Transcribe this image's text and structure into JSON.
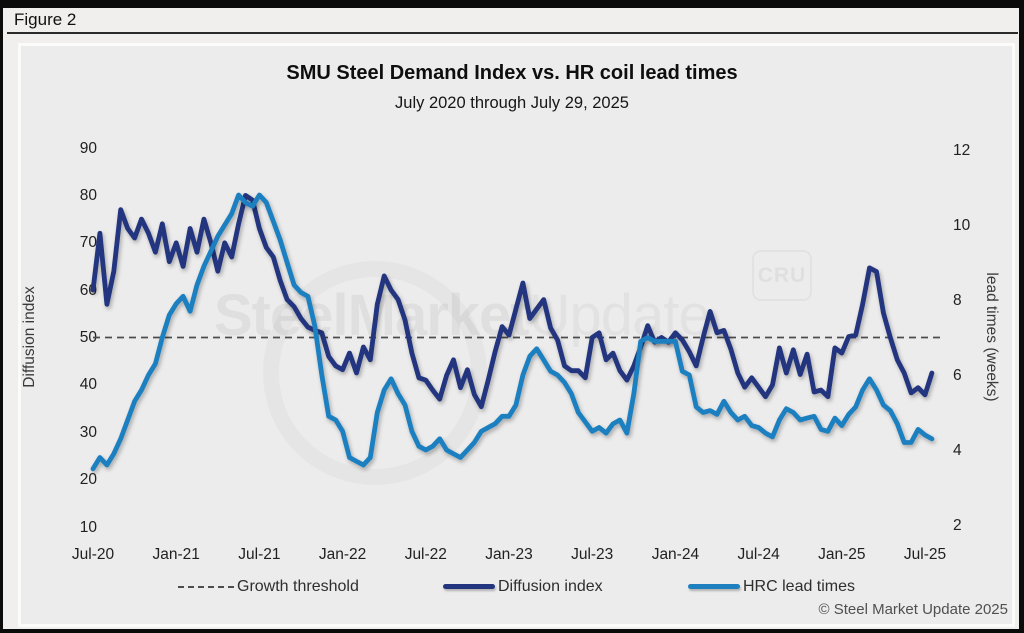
{
  "figure_label": "Figure 2",
  "footer_credit": "© Steel Market Update 2025",
  "watermark": {
    "word1": "SteelMarket",
    "word2": "Update",
    "badge": "CRU"
  },
  "colors": {
    "diffusion_line": "#22357e",
    "lead_time_line": "#1f80c0",
    "threshold_line": "#4d4d4d",
    "panel_bg": "#edecec",
    "page_bg": "#f0efee"
  },
  "chart_data": {
    "type": "line",
    "title": "SMU Steel Demand Index vs. HR coil lead times",
    "subtitle": "July 2020 through July 29, 2025",
    "x_axis": {
      "tick_labels": [
        "Jul-20",
        "Jan-21",
        "Jul-21",
        "Jan-22",
        "Jul-22",
        "Jan-23",
        "Jul-23",
        "Jan-24",
        "Jul-24",
        "Jan-25",
        "Jul-25"
      ],
      "start": "Jul-2020",
      "end": "Jul-2025",
      "points_step_months": 0.5
    },
    "y_left": {
      "label": "Diffusion index",
      "ticks": [
        90,
        80,
        70,
        60,
        50,
        40,
        30,
        20,
        10
      ],
      "range": [
        10,
        90
      ]
    },
    "y_right": {
      "label": "lead times (weeks)",
      "ticks": [
        12,
        10,
        8,
        6,
        4,
        2
      ],
      "range": [
        2,
        12
      ]
    },
    "threshold": {
      "label": "Growth threshold",
      "value": 50,
      "axis": "left",
      "style": "dashed",
      "color": "#4d4d4d"
    },
    "legend_position": "bottom",
    "grid": false,
    "series": [
      {
        "name": "Diffusion index",
        "axis": "left",
        "color": "#22357e",
        "values": [
          60,
          72,
          57,
          64,
          77,
          73,
          71,
          75,
          72,
          68,
          74,
          66,
          70,
          65,
          73,
          68,
          75,
          70,
          64,
          70,
          67,
          74,
          80,
          79,
          73,
          69,
          67,
          62,
          58,
          56.5,
          54,
          52.2,
          51.5,
          51,
          46,
          44,
          43.2,
          46.7,
          42.5,
          48,
          45.3,
          57,
          63,
          60,
          58,
          53.7,
          46.7,
          41.5,
          41,
          38.9,
          37,
          42,
          45.3,
          39.4,
          43.2,
          38,
          35.4,
          41,
          47,
          52.3,
          50.5,
          56,
          61.5,
          54,
          56,
          58,
          52,
          49.5,
          44,
          43,
          43,
          41.5,
          50,
          51,
          45.3,
          46.7,
          43,
          41,
          44,
          48,
          52.5,
          49,
          50,
          49,
          51,
          49.5,
          47,
          44,
          50,
          55.5,
          51,
          51.5,
          47.5,
          42.5,
          39.5,
          41.5,
          39.5,
          37.5,
          40,
          47.8,
          42.5,
          47.4,
          42.2,
          46.5,
          38.5,
          38.9,
          37.5,
          47.8,
          46.7,
          50.2,
          50.5,
          57,
          64.7,
          63.9,
          55.2,
          50,
          45.3,
          42.5,
          38.3,
          39.4,
          37.9,
          42.5
        ]
      },
      {
        "name": "HRC lead times",
        "axis": "right",
        "color": "#1f80c0",
        "values": [
          3.5,
          3.8,
          3.6,
          3.9,
          4.3,
          4.8,
          5.3,
          5.6,
          6.0,
          6.3,
          7.0,
          7.6,
          7.9,
          8.1,
          7.7,
          8.4,
          8.9,
          9.3,
          9.7,
          10.0,
          10.3,
          10.8,
          10.6,
          10.5,
          10.8,
          10.6,
          10.1,
          9.6,
          9.0,
          8.4,
          8.2,
          8.1,
          7.3,
          6.0,
          4.9,
          4.8,
          4.5,
          3.8,
          3.7,
          3.6,
          3.8,
          5.0,
          5.6,
          5.9,
          5.5,
          5.2,
          4.5,
          4.1,
          4.0,
          4.1,
          4.3,
          4.0,
          3.9,
          3.8,
          4.0,
          4.2,
          4.5,
          4.6,
          4.7,
          4.9,
          4.9,
          5.2,
          6.0,
          6.5,
          6.7,
          6.4,
          6.1,
          6.0,
          5.8,
          5.5,
          5.0,
          4.75,
          4.5,
          4.6,
          4.45,
          4.7,
          4.8,
          4.45,
          5.5,
          6.9,
          7.0,
          6.9,
          6.9,
          6.9,
          6.9,
          6.1,
          6.0,
          5.15,
          5.0,
          5.05,
          4.95,
          5.3,
          5.0,
          4.8,
          4.9,
          4.65,
          4.6,
          4.45,
          4.35,
          4.8,
          5.1,
          5.0,
          4.8,
          4.85,
          4.9,
          4.55,
          4.5,
          4.85,
          4.65,
          4.95,
          5.15,
          5.6,
          5.9,
          5.6,
          5.2,
          5.05,
          4.7,
          4.2,
          4.2,
          4.55,
          4.4,
          4.3
        ]
      }
    ]
  }
}
